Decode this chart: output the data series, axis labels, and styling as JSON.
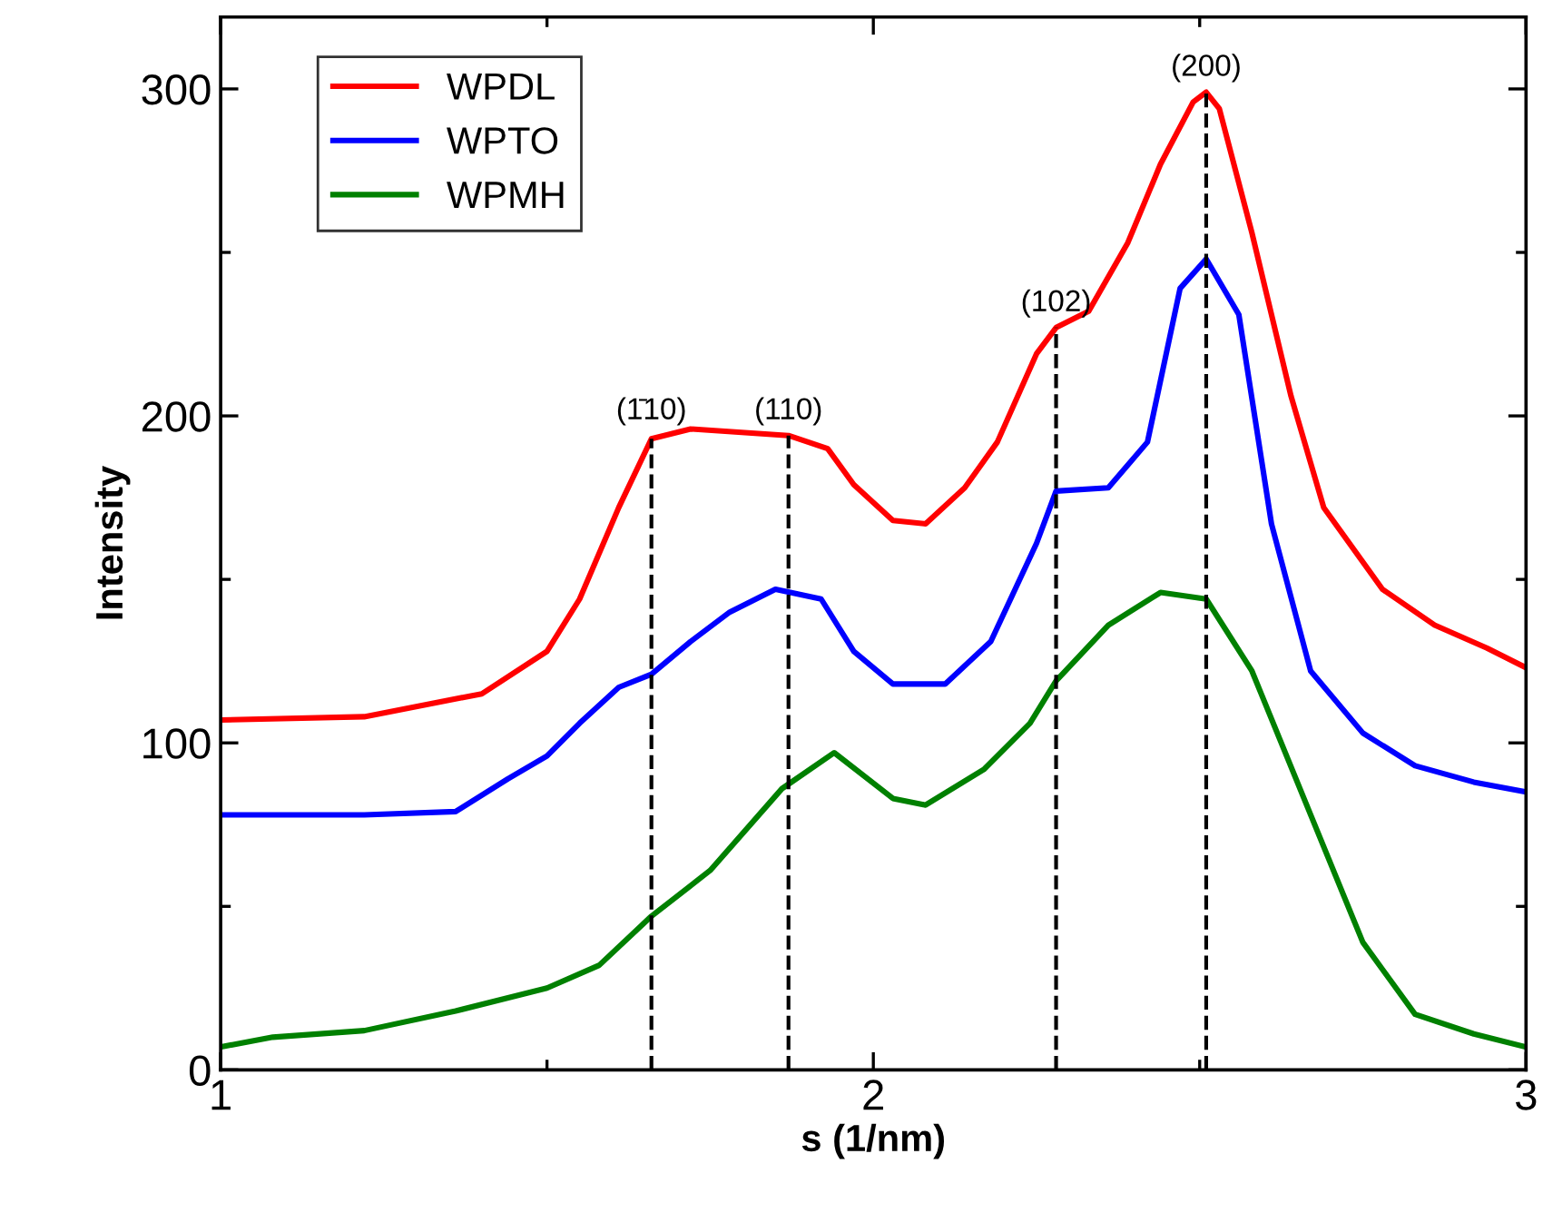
{
  "chart_data": {
    "type": "line",
    "xlabel": "s (1/nm)",
    "ylabel": "Intensity",
    "xlim": [
      1,
      3
    ],
    "xticks": [
      1,
      2,
      3
    ],
    "ylim": [
      0,
      322
    ],
    "yticks": [
      0,
      100,
      200,
      300
    ],
    "grid": false,
    "legend": "top left",
    "marker": "none",
    "line_style": "solid",
    "series": [
      {
        "name": "WPDL",
        "color": "#ff0000",
        "x": [
          1.0,
          1.22,
          1.4,
          1.5,
          1.55,
          1.61,
          1.66,
          1.72,
          1.87,
          1.93,
          1.97,
          2.03,
          2.08,
          2.14,
          2.19,
          2.25,
          2.28,
          2.33,
          2.39,
          2.44,
          2.49,
          2.51,
          2.53,
          2.58,
          2.64,
          2.69,
          2.78,
          2.86,
          2.94,
          3.0
        ],
        "values": [
          107,
          108,
          115,
          128,
          144,
          172,
          193,
          196,
          194,
          190,
          179,
          168,
          167,
          178,
          192,
          219,
          227,
          232,
          253,
          277,
          296,
          299,
          294,
          256,
          206,
          172,
          147,
          136,
          129,
          123
        ]
      },
      {
        "name": "WPTO",
        "color": "#0000ff",
        "x": [
          1.0,
          1.22,
          1.36,
          1.44,
          1.5,
          1.55,
          1.61,
          1.66,
          1.72,
          1.78,
          1.85,
          1.92,
          1.97,
          2.03,
          2.11,
          2.18,
          2.25,
          2.28,
          2.36,
          2.42,
          2.47,
          2.51,
          2.56,
          2.61,
          2.67,
          2.75,
          2.83,
          2.92,
          3.0
        ],
        "values": [
          78,
          78,
          79,
          89,
          96,
          106,
          117,
          121,
          131,
          140,
          147,
          144,
          128,
          118,
          118,
          131,
          161,
          177,
          178,
          192,
          239,
          248,
          231,
          167,
          122,
          103,
          93,
          88,
          85
        ]
      },
      {
        "name": "WPMH",
        "color": "#008000",
        "x": [
          1.0,
          1.08,
          1.22,
          1.36,
          1.5,
          1.58,
          1.66,
          1.75,
          1.86,
          1.94,
          2.03,
          2.08,
          2.17,
          2.24,
          2.28,
          2.36,
          2.44,
          2.51,
          2.58,
          2.67,
          2.75,
          2.83,
          2.92,
          3.0
        ],
        "values": [
          7,
          10,
          12,
          18,
          25,
          32,
          47,
          61,
          86,
          97,
          83,
          81,
          92,
          106,
          119,
          136,
          146,
          144,
          122,
          78,
          39,
          17,
          11,
          7
        ]
      }
    ],
    "ref_lines": [
      {
        "axis": "x",
        "value": 1.66,
        "color": "#000000",
        "line_style": "dashed"
      },
      {
        "axis": "x",
        "value": 1.87,
        "color": "#000000",
        "line_style": "dashed"
      },
      {
        "axis": "x",
        "value": 2.28,
        "color": "#000000",
        "line_style": "dashed"
      },
      {
        "axis": "x",
        "value": 2.51,
        "color": "#000000",
        "line_style": "dashed"
      }
    ],
    "annotations": [
      {
        "text": "(1̄10)",
        "x": 1.66,
        "y": 194
      },
      {
        "text": "(110)",
        "x": 1.87,
        "y": 194
      },
      {
        "text": "(102)",
        "x": 2.28,
        "y": 227
      },
      {
        "text": "(200)",
        "x": 2.51,
        "y": 299
      }
    ]
  }
}
